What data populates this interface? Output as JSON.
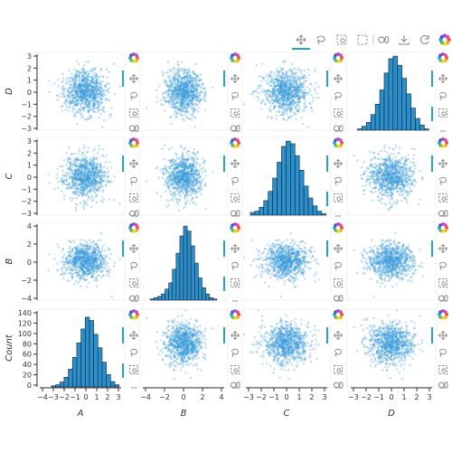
{
  "toolbar": {
    "top": [
      "pan-icon",
      "lasso-icon",
      "box-zoom-icon",
      "box-select-icon",
      "wheel-zoom-icon",
      "save-icon",
      "reset-icon",
      "bokeh-logo"
    ],
    "active": "pan-icon",
    "panel": [
      "bokeh-logo",
      "pan-icon",
      "lasso-icon",
      "box-zoom-icon",
      "wheel-zoom-icon",
      "more-icon"
    ]
  },
  "colors": {
    "point": "#3a9ad9",
    "bar": "#2b8fc9",
    "bar_edge": "#15233a",
    "active": "#26a4c4"
  },
  "chart_data": {
    "type": "scatter-matrix",
    "variables": [
      "A",
      "B",
      "C",
      "D"
    ],
    "rows": [
      "D",
      "C",
      "B",
      "Count"
    ],
    "xlabels": [
      "A",
      "B",
      "C",
      "D"
    ],
    "ylabels": [
      "D",
      "C",
      "B",
      "Count"
    ],
    "xticks": [
      [
        "−4",
        "−3",
        "−2",
        "−1",
        "0",
        "1",
        "2",
        "3"
      ],
      [
        "−4",
        "−2",
        "0",
        "2",
        "4"
      ],
      [
        "−3",
        "−2",
        "−1",
        "0",
        "1",
        "2",
        "3"
      ],
      [
        "−3",
        "−2",
        "−1",
        "0",
        "1",
        "2",
        "3"
      ]
    ],
    "yticks": [
      [
        "3",
        "2",
        "1",
        "0",
        "−1",
        "−2",
        "−3"
      ],
      [
        "3",
        "2",
        "1",
        "0",
        "−1",
        "−2",
        "−3"
      ],
      [
        "4",
        "2",
        "0",
        "−2",
        "−4"
      ],
      [
        "140",
        "120",
        "100",
        "80",
        "60",
        "40",
        "20",
        "0"
      ]
    ],
    "ranges": {
      "A": [
        -4.3,
        3.4
      ],
      "B": [
        -4.4,
        4.4
      ],
      "C": [
        -3.6,
        3.7
      ],
      "D": [
        -3.6,
        3.7
      ]
    },
    "count_range": [
      0,
      145
    ],
    "histograms": {
      "A": {
        "bins": [
          -3.2,
          -2.8,
          -2.4,
          -2.0,
          -1.6,
          -1.2,
          -0.8,
          -0.4,
          0.0,
          0.4,
          0.8,
          1.2,
          1.6,
          2.0,
          2.4,
          2.8
        ],
        "counts": [
          2,
          4,
          9,
          18,
          33,
          55,
          82,
          108,
          130,
          124,
          98,
          73,
          46,
          23,
          10,
          4
        ]
      },
      "B": {
        "bins": [
          -3.6,
          -3.2,
          -2.8,
          -2.4,
          -2.0,
          -1.6,
          -1.2,
          -0.8,
          -0.4,
          0.0,
          0.4,
          0.8,
          1.2,
          1.6,
          2.0,
          2.4,
          2.8,
          3.2
        ],
        "counts": [
          1,
          2,
          3,
          5,
          9,
          14,
          25,
          38,
          52,
          60,
          56,
          44,
          30,
          18,
          10,
          5,
          2,
          1
        ]
      },
      "C": {
        "bins": [
          -3.2,
          -2.8,
          -2.4,
          -2.0,
          -1.6,
          -1.2,
          -0.8,
          -0.4,
          0.0,
          0.4,
          0.8,
          1.2,
          1.6,
          2.0,
          2.4,
          2.8,
          3.2
        ],
        "counts": [
          2,
          3,
          6,
          11,
          18,
          28,
          40,
          52,
          56,
          54,
          45,
          34,
          22,
          13,
          7,
          3,
          1
        ]
      },
      "D": {
        "bins": [
          -3.0,
          -2.6,
          -2.2,
          -1.8,
          -1.4,
          -1.0,
          -0.6,
          -0.2,
          0.2,
          0.6,
          1.0,
          1.4,
          1.8,
          2.2,
          2.6,
          3.0
        ],
        "counts": [
          1,
          3,
          6,
          12,
          20,
          31,
          44,
          55,
          57,
          50,
          40,
          28,
          17,
          9,
          4,
          1
        ]
      }
    },
    "scatter_n": 900,
    "grid": false
  }
}
